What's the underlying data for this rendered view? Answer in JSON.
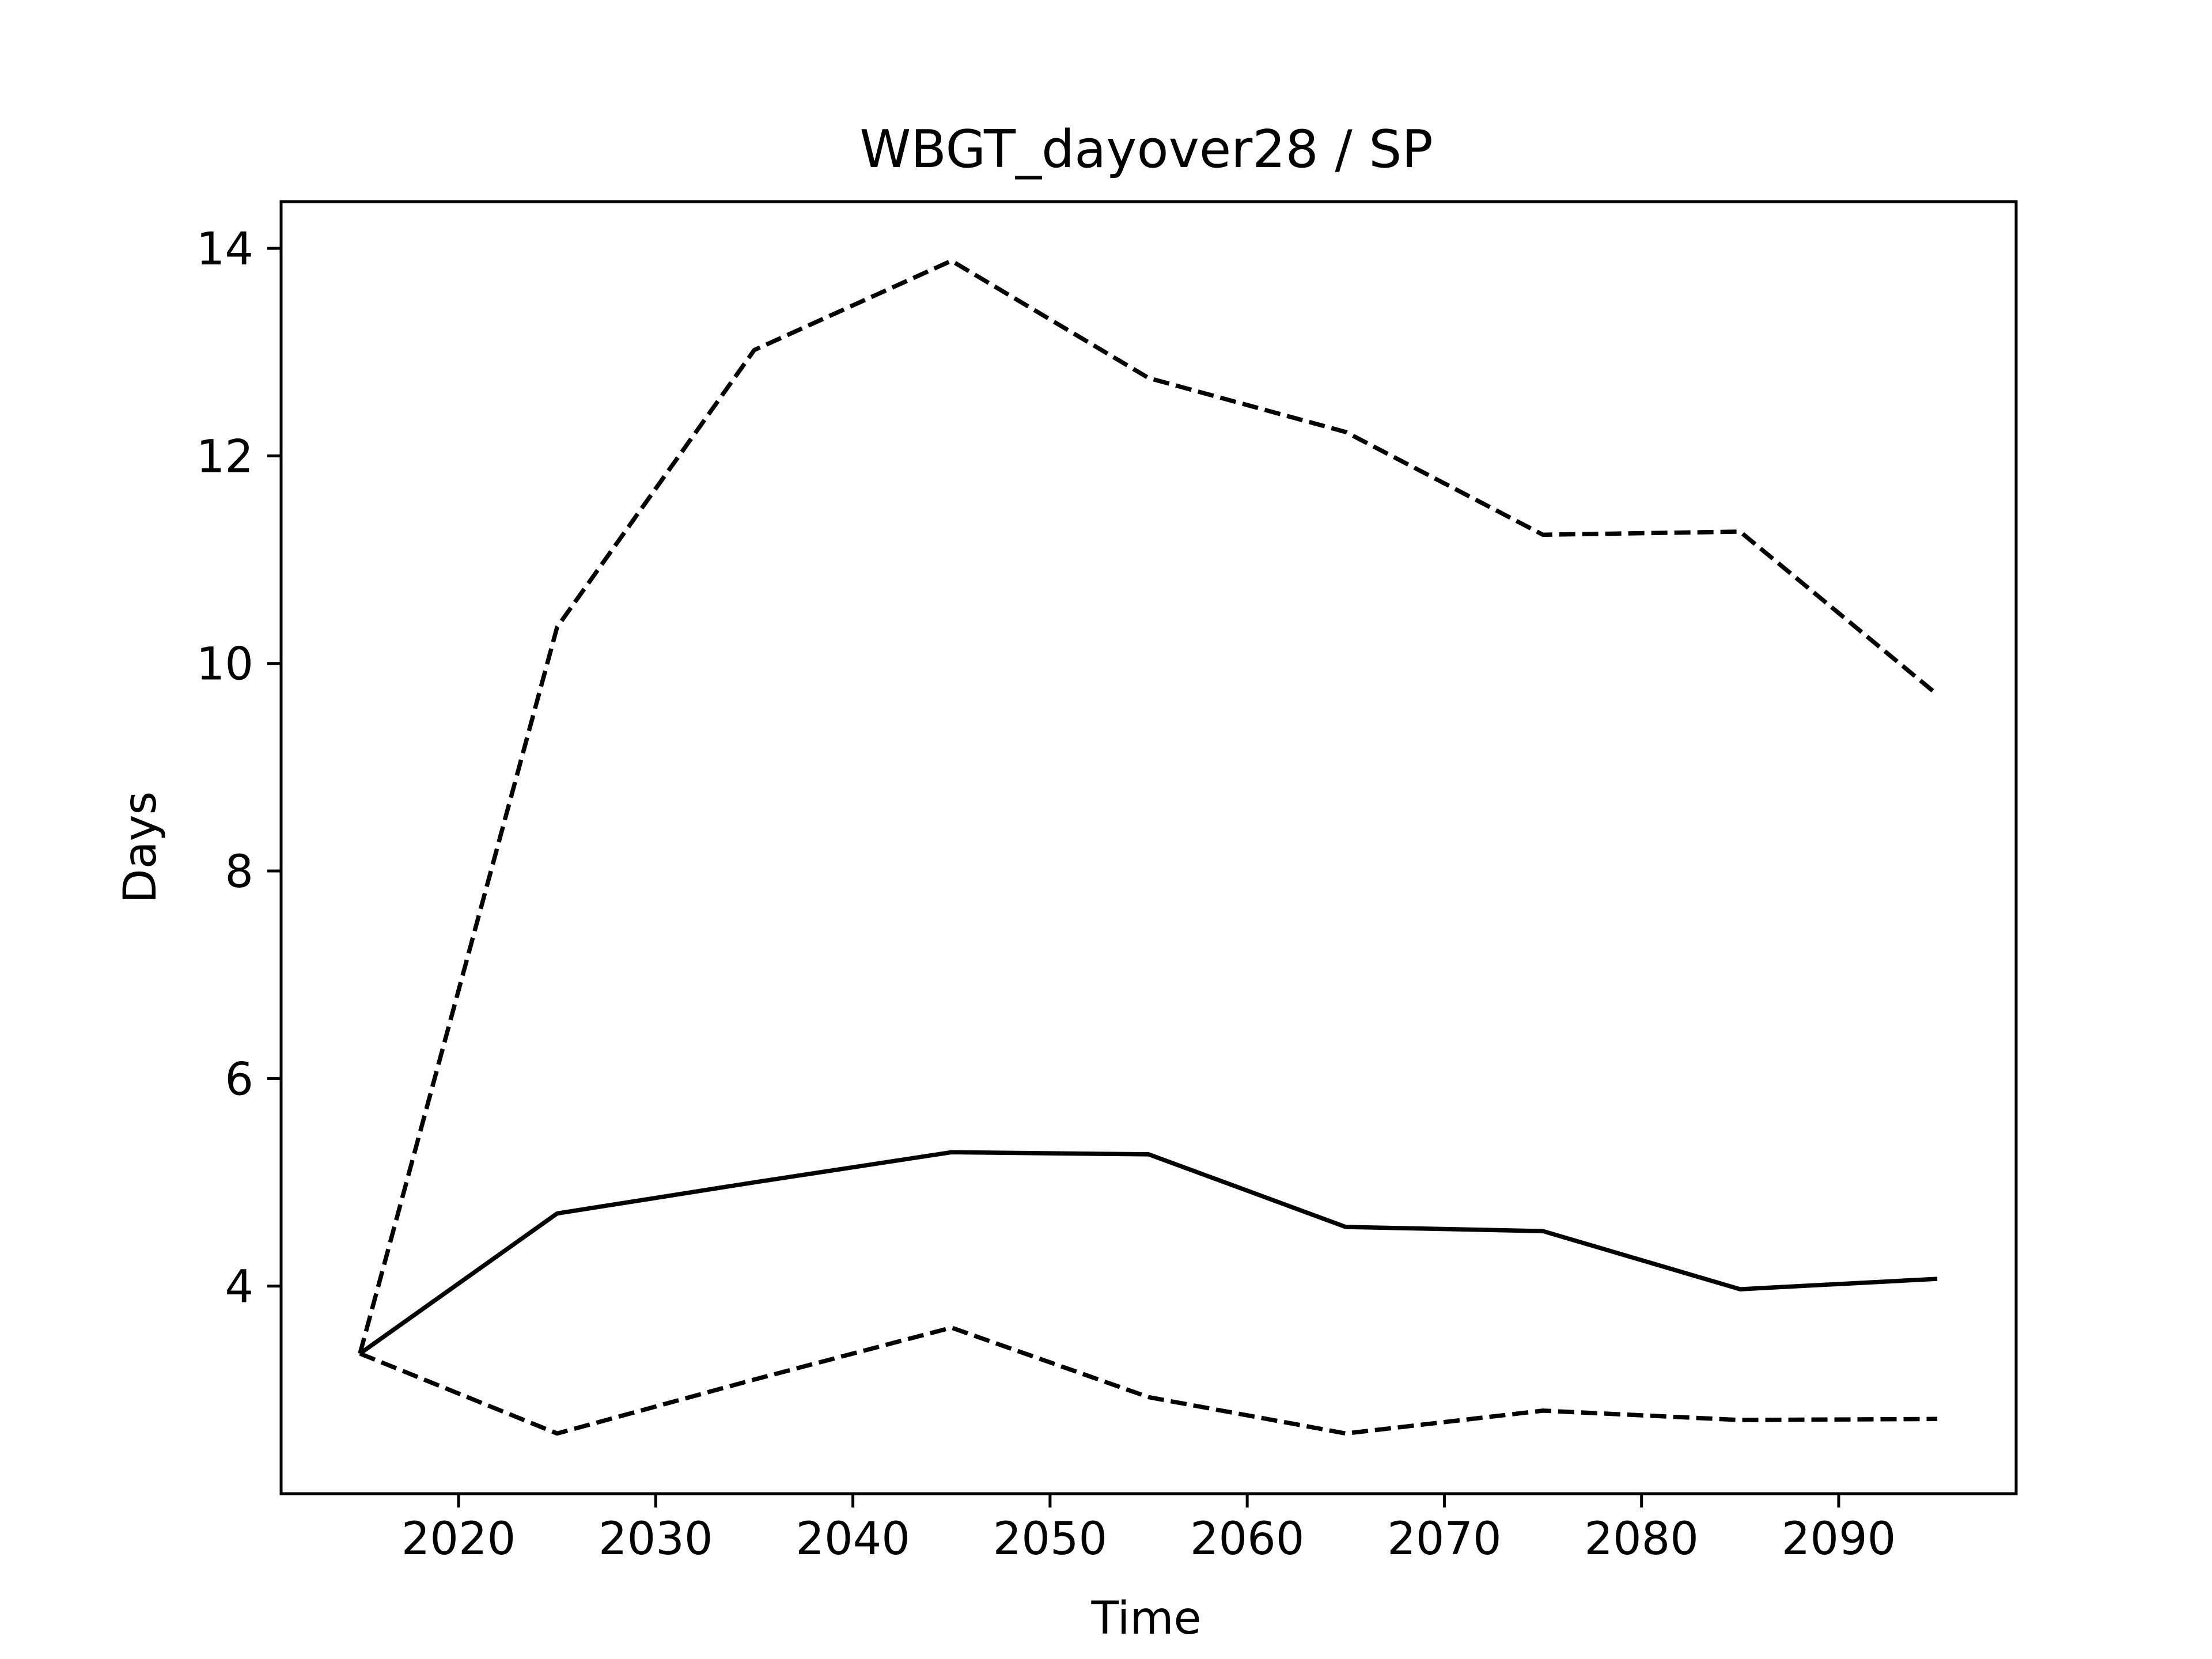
{
  "chart_data": {
    "type": "line",
    "title": "WBGT_dayover28 / SP",
    "xlabel": "Time",
    "ylabel": "Days",
    "x": [
      2015,
      2025,
      2035,
      2045,
      2055,
      2065,
      2075,
      2085,
      2095
    ],
    "xlim": [
      2011,
      2099
    ],
    "ylim": [
      2.0,
      14.45
    ],
    "xticks": [
      2020,
      2030,
      2040,
      2050,
      2060,
      2070,
      2080,
      2090
    ],
    "yticks": [
      4,
      6,
      8,
      10,
      12,
      14
    ],
    "grid": false,
    "legend": "none",
    "series": [
      {
        "style": "solid",
        "color": "#000000",
        "values": [
          3.35,
          4.7,
          5.0,
          5.29,
          5.27,
          4.57,
          4.53,
          3.97,
          4.07
        ]
      },
      {
        "style": "dashed",
        "color": "#000000",
        "values": [
          3.35,
          10.35,
          13.02,
          13.88,
          12.75,
          12.23,
          11.24,
          11.27,
          9.7
        ]
      },
      {
        "style": "dashed",
        "color": "#000000",
        "values": [
          3.35,
          2.58,
          3.1,
          3.6,
          2.93,
          2.58,
          2.8,
          2.71,
          2.72
        ]
      }
    ]
  }
}
